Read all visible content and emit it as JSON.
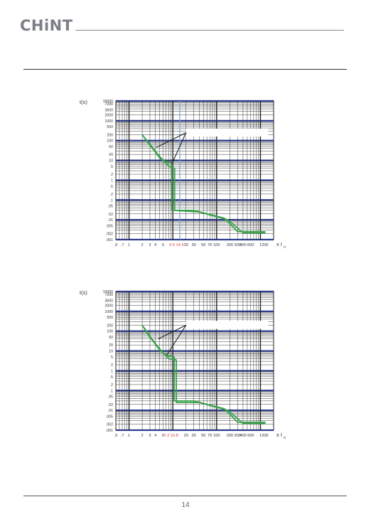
{
  "brand": {
    "logo_text": "CHiNT"
  },
  "footer": {
    "page_number": "14"
  },
  "chart_data": [
    {
      "type": "line",
      "x_scale": "log",
      "y_scale": "log",
      "xlim": [
        0.5,
        2000
      ],
      "ylim": [
        0.001,
        10000
      ],
      "ylabel": "t(s)",
      "xlabel_main": "x I",
      "xlabel_sub": "n",
      "y_ticks": [
        {
          "v": 10000,
          "label": "10000"
        },
        {
          "v": 7200,
          "label": "7200"
        },
        {
          "v": 3600,
          "label": "3600"
        },
        {
          "v": 2000,
          "label": "2000"
        },
        {
          "v": 1000,
          "label": "1000"
        },
        {
          "v": 500,
          "label": "500"
        },
        {
          "v": 200,
          "label": "200"
        },
        {
          "v": 100,
          "label": "100"
        },
        {
          "v": 50,
          "label": "50"
        },
        {
          "v": 20,
          "label": "20"
        },
        {
          "v": 10,
          "label": "10"
        },
        {
          "v": 5,
          "label": "5"
        },
        {
          "v": 2,
          "label": "2"
        },
        {
          "v": 1,
          "label": "1"
        },
        {
          "v": 0.5,
          "label": ".5"
        },
        {
          "v": 0.2,
          "label": ".2"
        },
        {
          "v": 0.1,
          "label": ".1"
        },
        {
          "v": 0.05,
          "label": ".05"
        },
        {
          "v": 0.02,
          "label": ".02"
        },
        {
          "v": 0.01,
          "label": ".01"
        },
        {
          "v": 0.005,
          "label": ".005"
        },
        {
          "v": 0.002,
          "label": ".002"
        },
        {
          "v": 0.001,
          "label": ".001"
        }
      ],
      "x_ticks": [
        {
          "v": 0.5,
          "label": ".5",
          "color": "#333333"
        },
        {
          "v": 0.7,
          "label": ".7",
          "color": "#333333"
        },
        {
          "v": 1,
          "label": "1",
          "color": "#333333"
        },
        {
          "v": 2,
          "label": "2",
          "color": "#333333"
        },
        {
          "v": 3,
          "label": "3",
          "color": "#333333"
        },
        {
          "v": 4,
          "label": "4",
          "color": "#333333"
        },
        {
          "v": 6,
          "label": "6",
          "color": "#333333"
        },
        {
          "v": 9.6,
          "label": "9.6",
          "color": "#e23b3b"
        },
        {
          "v": 14.4,
          "label": "14.4",
          "color": "#e23b3b"
        },
        {
          "v": 20,
          "label": "20",
          "color": "#333333"
        },
        {
          "v": 30,
          "label": "30",
          "color": "#333333"
        },
        {
          "v": 50,
          "label": "50",
          "color": "#333333"
        },
        {
          "v": 70,
          "label": "70",
          "color": "#333333"
        },
        {
          "v": 100,
          "label": "100",
          "color": "#333333"
        },
        {
          "v": 200,
          "label": "200",
          "color": "#333333"
        },
        {
          "v": 300,
          "label": "300",
          "color": "#333333"
        },
        {
          "v": 400,
          "label": "400",
          "color": "#333333"
        },
        {
          "v": 600,
          "label": "600",
          "color": "#333333"
        },
        {
          "v": 1200,
          "label": "1200",
          "color": "#333333"
        }
      ],
      "series": [
        {
          "values_x": [
            2,
            2.8,
            3.8,
            5.2,
            7.2,
            9.6,
            9.6,
            30,
            150,
            300,
            1300
          ],
          "values_y": [
            200,
            70,
            30,
            12,
            8,
            8,
            0.03,
            0.03,
            0.012,
            0.0025,
            0.0025
          ],
          "color": "#3aa14a"
        },
        {
          "values_x": [
            2.2,
            3.2,
            4.4,
            6,
            8.2,
            11,
            11,
            40,
            180,
            400,
            1300
          ],
          "values_y": [
            150,
            55,
            22,
            10,
            5,
            4,
            0.03,
            0.025,
            0.01,
            0.0022,
            0.0022
          ],
          "color": "#3aa14a"
        },
        {
          "values_x": [
            9.6,
            9.6
          ],
          "values_y": [
            8,
            0.03
          ],
          "color": "#3aa14a"
        }
      ],
      "verticals": [
        {
          "x": 14.4,
          "color": "#7a9ed2"
        }
      ],
      "annotation_lines": [
        {
          "x1": 4.2,
          "y1": 45,
          "x2": 20,
          "y2": 250,
          "color": "#222222"
        },
        {
          "x1": 9.6,
          "y1": 7,
          "x2": 20,
          "y2": 250,
          "color": "#222222"
        }
      ],
      "annotation_box": {
        "x0": 20,
        "y0": 160,
        "x1": 1500,
        "y1": 400
      },
      "background": "#ffffff",
      "grid": true,
      "grid_color": "#222222",
      "y_band_color": "#2c3d8f"
    },
    {
      "type": "line",
      "x_scale": "log",
      "y_scale": "log",
      "xlim": [
        0.5,
        2000
      ],
      "ylim": [
        0.001,
        10000
      ],
      "ylabel": "t(s)",
      "xlabel_main": "x I",
      "xlabel_sub": "n",
      "y_ticks": [
        {
          "v": 10000,
          "label": "10000"
        },
        {
          "v": 7200,
          "label": "7200"
        },
        {
          "v": 3600,
          "label": "3600"
        },
        {
          "v": 2000,
          "label": "2000"
        },
        {
          "v": 1000,
          "label": "1000"
        },
        {
          "v": 500,
          "label": "500"
        },
        {
          "v": 200,
          "label": "200"
        },
        {
          "v": 100,
          "label": "100"
        },
        {
          "v": 50,
          "label": "50"
        },
        {
          "v": 20,
          "label": "20"
        },
        {
          "v": 10,
          "label": "10"
        },
        {
          "v": 5,
          "label": "5"
        },
        {
          "v": 2,
          "label": "2"
        },
        {
          "v": 1,
          "label": "1"
        },
        {
          "v": 0.5,
          "label": ".5"
        },
        {
          "v": 0.2,
          "label": ".2"
        },
        {
          "v": 0.1,
          "label": ".1"
        },
        {
          "v": 0.05,
          "label": ".05"
        },
        {
          "v": 0.02,
          "label": ".02"
        },
        {
          "v": 0.01,
          "label": ".01"
        },
        {
          "v": 0.005,
          "label": ".005"
        },
        {
          "v": 0.002,
          "label": ".002"
        },
        {
          "v": 0.001,
          "label": ".001"
        }
      ],
      "x_ticks": [
        {
          "v": 0.5,
          "label": ".5",
          "color": "#333333"
        },
        {
          "v": 0.7,
          "label": ".7",
          "color": "#333333"
        },
        {
          "v": 1,
          "label": "1",
          "color": "#333333"
        },
        {
          "v": 2,
          "label": "2",
          "color": "#333333"
        },
        {
          "v": 3,
          "label": "3",
          "color": "#333333"
        },
        {
          "v": 4,
          "label": "4",
          "color": "#333333"
        },
        {
          "v": 6,
          "label": "6",
          "color": "#333333"
        },
        {
          "v": 7.2,
          "label": "7.2",
          "color": "#e23b3b"
        },
        {
          "v": 10.8,
          "label": "10.8",
          "color": "#e23b3b"
        },
        {
          "v": 20,
          "label": "20",
          "color": "#333333"
        },
        {
          "v": 30,
          "label": "30",
          "color": "#333333"
        },
        {
          "v": 50,
          "label": "50",
          "color": "#333333"
        },
        {
          "v": 70,
          "label": "70",
          "color": "#333333"
        },
        {
          "v": 100,
          "label": "100",
          "color": "#333333"
        },
        {
          "v": 200,
          "label": "200",
          "color": "#333333"
        },
        {
          "v": 300,
          "label": "300",
          "color": "#333333"
        },
        {
          "v": 400,
          "label": "400",
          "color": "#333333"
        },
        {
          "v": 600,
          "label": "600",
          "color": "#333333"
        },
        {
          "v": 1200,
          "label": "1200",
          "color": "#333333"
        }
      ],
      "series": [
        {
          "values_x": [
            2,
            2.8,
            3.8,
            5.2,
            7.2,
            10.8,
            10.8,
            30,
            150,
            300,
            1300
          ],
          "values_y": [
            200,
            60,
            25,
            10,
            6,
            5,
            0.03,
            0.03,
            0.012,
            0.0025,
            0.0025
          ],
          "color": "#3aa14a"
        },
        {
          "values_x": [
            2.2,
            3.2,
            4.4,
            6,
            8.2,
            12,
            12,
            40,
            180,
            400,
            1300
          ],
          "values_y": [
            150,
            45,
            18,
            8,
            4,
            3.5,
            0.025,
            0.025,
            0.01,
            0.0022,
            0.0022
          ],
          "color": "#3aa14a"
        }
      ],
      "verticals": [],
      "annotation_lines": [
        {
          "x1": 4.6,
          "y1": 40,
          "x2": 20,
          "y2": 200,
          "color": "#222222"
        },
        {
          "x1": 7.2,
          "y1": 6,
          "x2": 20,
          "y2": 200,
          "color": "#222222"
        }
      ],
      "annotation_box": {
        "x0": 20,
        "y0": 130,
        "x1": 1500,
        "y1": 330
      },
      "background": "#ffffff",
      "grid": true,
      "grid_color": "#222222",
      "y_band_color": "#2c3d8f"
    }
  ]
}
